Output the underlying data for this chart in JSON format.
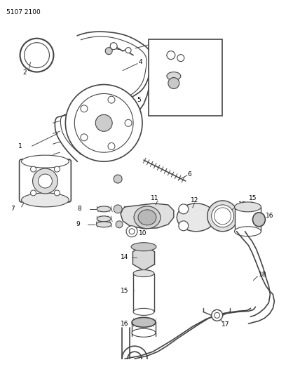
{
  "title": "5107 2100",
  "bg_color": "#ffffff",
  "lc": "#444444",
  "figsize": [
    4.08,
    5.33
  ],
  "dpi": 100
}
